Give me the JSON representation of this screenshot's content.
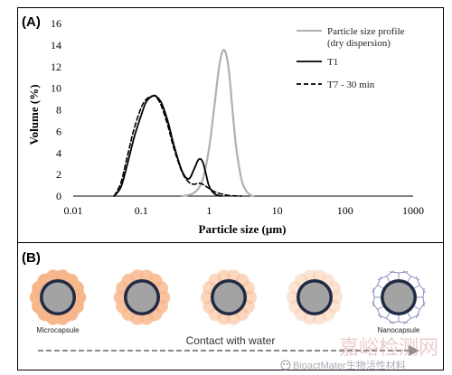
{
  "panel_a": {
    "label": "(A)"
  },
  "panel_b": {
    "label": "(B)"
  },
  "chart_data": {
    "type": "line",
    "title": "",
    "xlabel": "Particle size (µm)",
    "ylabel": "Volume (%)",
    "xscale": "log",
    "xlim": [
      0.01,
      1000
    ],
    "ylim": [
      0,
      16
    ],
    "x_ticks": [
      "0.01",
      "0.1",
      "1",
      "10",
      "100",
      "1000"
    ],
    "y_ticks": [
      "0",
      "2",
      "4",
      "6",
      "8",
      "10",
      "12",
      "14",
      "16"
    ],
    "grid": false,
    "legend_position": "top-right",
    "series": [
      {
        "name": "Particle size profile (dry dispersion)",
        "legend_lines": [
          "Particle size profile",
          "(dry dispersion)"
        ],
        "style": "solid",
        "color": "#b0b0b0",
        "x": [
          0.4,
          0.6,
          0.8,
          1.0,
          1.2,
          1.4,
          1.6,
          1.8,
          2.0,
          2.2,
          2.5,
          3.0,
          3.5,
          4.0,
          4.5
        ],
        "y": [
          0,
          0.3,
          1.5,
          4.5,
          8.5,
          12,
          13.5,
          13,
          11,
          8,
          4.5,
          1.5,
          0.5,
          0.1,
          0
        ]
      },
      {
        "name": "T1",
        "legend_lines": [
          "T1"
        ],
        "style": "solid",
        "color": "#000000",
        "x": [
          0.04,
          0.05,
          0.06,
          0.07,
          0.08,
          0.1,
          0.12,
          0.15,
          0.17,
          0.2,
          0.25,
          0.3,
          0.4,
          0.5,
          0.6,
          0.7,
          0.8,
          0.9,
          1.0,
          1.2,
          1.5
        ],
        "y": [
          0,
          0.8,
          2.5,
          4.2,
          5.6,
          7.5,
          8.8,
          9.3,
          9.2,
          8.6,
          6.8,
          4.8,
          2.3,
          1.6,
          2.5,
          3.4,
          3.2,
          2.0,
          0.9,
          0.2,
          0
        ]
      },
      {
        "name": "T7 - 30 min",
        "legend_lines": [
          "T7 - 30 min"
        ],
        "style": "dashed",
        "color": "#000000",
        "x": [
          0.04,
          0.05,
          0.06,
          0.07,
          0.08,
          0.1,
          0.12,
          0.15,
          0.17,
          0.2,
          0.25,
          0.3,
          0.4,
          0.5,
          0.6,
          0.7,
          0.8,
          0.9,
          1.0,
          1.2,
          1.5,
          2.0,
          3.0
        ],
        "y": [
          0,
          1.2,
          3.2,
          5.0,
          6.4,
          8.2,
          9.0,
          9.3,
          9.1,
          8.3,
          6.4,
          4.5,
          2.2,
          1.3,
          1.1,
          1.2,
          1.1,
          0.9,
          0.7,
          0.4,
          0.2,
          0.05,
          0
        ]
      }
    ]
  },
  "schematic": {
    "labels": {
      "microcapsule": "Microcapsule",
      "nanocapsule": "Nanocapsule",
      "contact": "Contact with water"
    },
    "colors": {
      "core": "#a3a3a3",
      "shell": "#1f2a44",
      "coating": "#f7b78c",
      "coating_light": "#fbd7bd",
      "polymer": "#8f8fbf",
      "arrow": "#8a8a8a"
    },
    "stages": [
      {
        "coating_opacity": 1.0
      },
      {
        "coating_opacity": 0.75
      },
      {
        "coating_opacity": 0.45
      },
      {
        "coating_opacity": 0.28
      },
      {
        "coating_opacity": 0.0
      }
    ]
  },
  "watermark": {
    "text_cn": "嘉峪检测网",
    "social": "BioactMater生物活性材料"
  }
}
